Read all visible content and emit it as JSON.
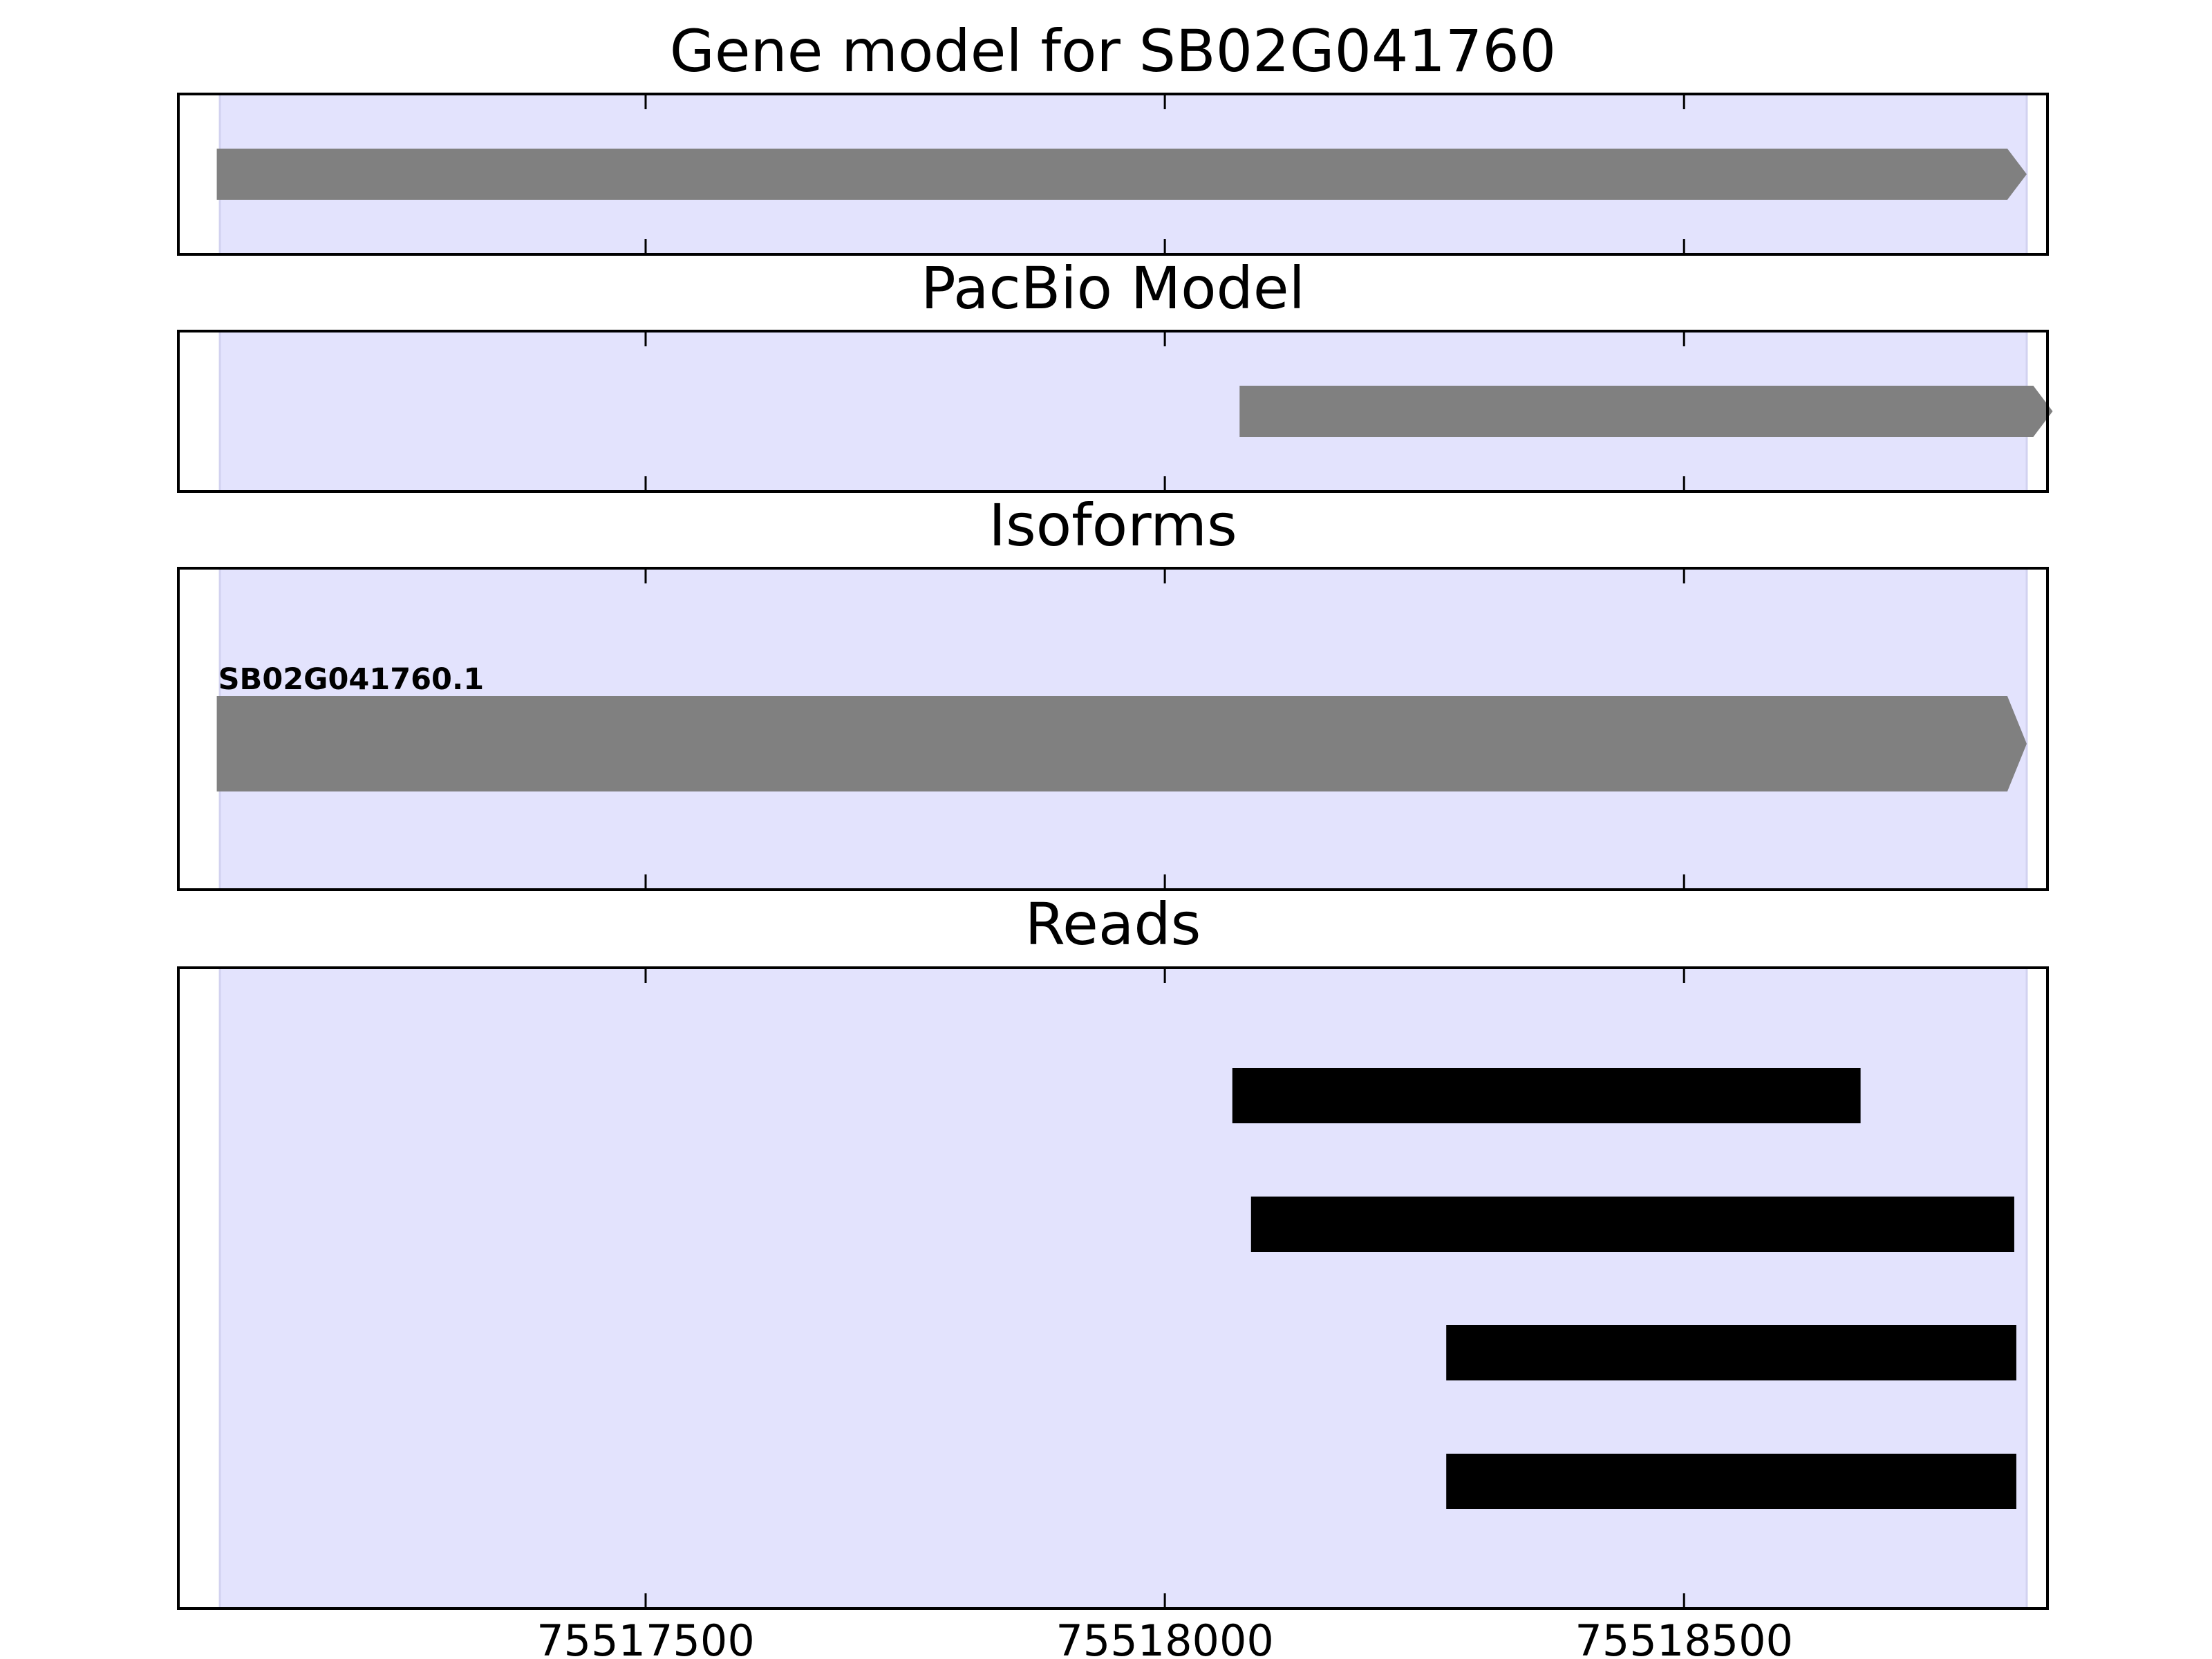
{
  "chart_data": {
    "type": "gene-track",
    "x_axis": {
      "xlim": [
        75517050,
        75518850
      ],
      "ticks": [
        75517500,
        75518000,
        75518500
      ],
      "tick_labels": [
        "75517500",
        "75518000",
        "75518500"
      ]
    },
    "highlight_region": {
      "start": 75517090,
      "end": 75518830,
      "color": "#e3e3fd"
    },
    "panels": [
      {
        "id": "gene-model",
        "title": "Gene model for SB02G041760",
        "features": [
          {
            "start": 75517087,
            "end": 75518830,
            "strand": "+",
            "color": "#808080"
          }
        ]
      },
      {
        "id": "pacbio-model",
        "title": "PacBio Model",
        "features": [
          {
            "start": 75518072,
            "end": 75518855,
            "strand": "+",
            "color": "#808080"
          }
        ]
      },
      {
        "id": "isoforms",
        "title": "Isoforms",
        "features": [
          {
            "label": "SB02G041760.1",
            "start": 75517087,
            "end": 75518830,
            "strand": "+",
            "color": "#808080"
          }
        ]
      },
      {
        "id": "reads",
        "title": "Reads",
        "features": [
          {
            "start": 75518065,
            "end": 75518670,
            "color": "#000000"
          },
          {
            "start": 75518083,
            "end": 75518818,
            "color": "#000000"
          },
          {
            "start": 75518271,
            "end": 75518820,
            "color": "#000000"
          },
          {
            "start": 75518271,
            "end": 75518820,
            "color": "#000000"
          }
        ]
      }
    ]
  }
}
